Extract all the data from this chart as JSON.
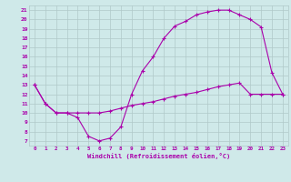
{
  "xlabel": "Windchill (Refroidissement éolien,°C)",
  "bg_color": "#cfe9e9",
  "line_color": "#aa00aa",
  "grid_color": "#b0c8c8",
  "curve1_y": [
    13,
    11,
    10,
    10,
    9.5,
    7.5,
    7,
    7.3,
    8.5,
    12,
    14.5,
    16,
    18,
    19.3,
    19.8,
    20.5,
    20.8,
    21,
    21,
    20.5,
    20,
    19.2,
    14.3,
    12
  ],
  "curve2_y": [
    13,
    11,
    10,
    10,
    10,
    10,
    10,
    10.2,
    10.5,
    10.8,
    11.0,
    11.2,
    11.5,
    11.8,
    12.0,
    12.2,
    12.5,
    12.8,
    13.0,
    13.2,
    12.0,
    12.0,
    12.0,
    12.0
  ],
  "xlim": [
    -0.5,
    23.5
  ],
  "ylim": [
    6.5,
    21.5
  ],
  "yticks": [
    7,
    8,
    9,
    10,
    11,
    12,
    13,
    14,
    15,
    16,
    17,
    18,
    19,
    20,
    21
  ],
  "xticks": [
    0,
    1,
    2,
    3,
    4,
    5,
    6,
    7,
    8,
    9,
    10,
    11,
    12,
    13,
    14,
    15,
    16,
    17,
    18,
    19,
    20,
    21,
    22,
    23
  ]
}
